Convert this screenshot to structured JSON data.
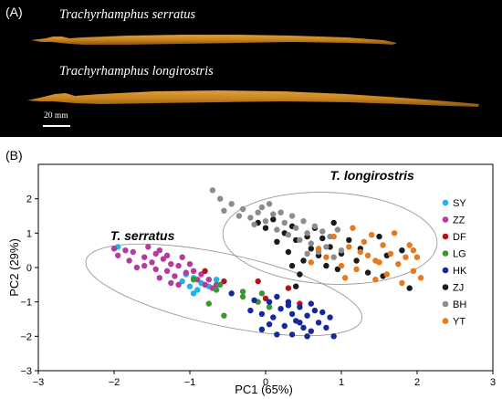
{
  "panel_a": {
    "letter": "(A)",
    "species_top": "Trachyrhamphus serratus",
    "species_bottom": "Trachyrhamphus longirostris",
    "scale_label": "20 mm",
    "background": "#000000",
    "fish_color": "#c8841e"
  },
  "panel_b": {
    "letter": "(B)"
  },
  "chart_data": {
    "type": "scatter",
    "xlabel": "PC1 (65%)",
    "ylabel": "PC2 (29%)",
    "xlim": [
      -3,
      3
    ],
    "ylim": [
      -3,
      3
    ],
    "xticks": [
      "−3",
      "−2",
      "−1",
      "0",
      "1",
      "2",
      "3"
    ],
    "yticks": [
      "2",
      "1",
      "0",
      "−1",
      "−2",
      "−3"
    ],
    "group_labels": {
      "serratus": "T. serratus",
      "longirostris": "T. longirostris"
    },
    "legend_position": "right",
    "series": [
      {
        "name": "SY",
        "color": "#1eb4e6",
        "points": [
          [
            -1.95,
            0.6
          ],
          [
            -1.1,
            -0.4
          ],
          [
            -1.0,
            -0.55
          ],
          [
            -0.95,
            -0.3
          ],
          [
            -0.9,
            -0.65
          ],
          [
            -0.85,
            -0.45
          ],
          [
            -1.05,
            -0.2
          ],
          [
            -0.75,
            -0.55
          ],
          [
            -0.95,
            -0.75
          ],
          [
            -0.65,
            -0.35
          ]
        ]
      },
      {
        "name": "ZZ",
        "color": "#b43ca0",
        "points": [
          [
            -2.0,
            0.55
          ],
          [
            -1.95,
            0.35
          ],
          [
            -1.85,
            0.5
          ],
          [
            -1.8,
            0.2
          ],
          [
            -1.75,
            0.45
          ],
          [
            -1.7,
            0.0
          ],
          [
            -1.6,
            0.3
          ],
          [
            -1.6,
            0.05
          ],
          [
            -1.55,
            0.6
          ],
          [
            -1.5,
            0.15
          ],
          [
            -1.45,
            0.4
          ],
          [
            -1.45,
            -0.05
          ],
          [
            -1.4,
            0.5
          ],
          [
            -1.35,
            0.25
          ],
          [
            -1.3,
            -0.1
          ],
          [
            -1.3,
            0.35
          ],
          [
            -1.25,
            0.1
          ],
          [
            -1.2,
            -0.25
          ],
          [
            -1.15,
            0.05
          ],
          [
            -1.1,
            0.3
          ],
          [
            -1.05,
            -0.15
          ],
          [
            -1.0,
            0.1
          ],
          [
            -0.95,
            -0.1
          ],
          [
            -0.9,
            -0.35
          ],
          [
            -0.85,
            -0.2
          ],
          [
            -0.8,
            -0.5
          ],
          [
            -0.75,
            -0.35
          ],
          [
            -0.7,
            -0.6
          ],
          [
            -0.65,
            -0.5
          ],
          [
            -1.25,
            -0.45
          ],
          [
            -1.15,
            -0.5
          ],
          [
            -1.4,
            -0.3
          ]
        ]
      },
      {
        "name": "DF",
        "color": "#b41414",
        "points": [
          [
            -0.8,
            -0.1
          ],
          [
            -0.55,
            -0.4
          ],
          [
            -0.1,
            -0.4
          ],
          [
            0.0,
            -0.9
          ],
          [
            0.3,
            -0.6
          ],
          [
            0.45,
            -1.05
          ]
        ]
      },
      {
        "name": "LG",
        "color": "#3c9632",
        "points": [
          [
            -0.95,
            -0.35
          ],
          [
            -0.65,
            -0.65
          ],
          [
            -0.6,
            -0.5
          ],
          [
            -0.3,
            -0.85
          ],
          [
            -0.75,
            -1.05
          ],
          [
            -0.55,
            -1.4
          ],
          [
            -0.3,
            -0.7
          ],
          [
            -0.1,
            -1.0
          ],
          [
            0.05,
            -1.15
          ],
          [
            -0.05,
            -0.75
          ]
        ]
      },
      {
        "name": "HK",
        "color": "#1428a0",
        "points": [
          [
            -0.45,
            -0.75
          ],
          [
            -0.2,
            -1.25
          ],
          [
            -0.15,
            -0.95
          ],
          [
            -0.05,
            -1.35
          ],
          [
            0.05,
            -1.0
          ],
          [
            0.1,
            -1.45
          ],
          [
            0.15,
            -0.85
          ],
          [
            0.2,
            -1.2
          ],
          [
            0.25,
            -1.7
          ],
          [
            0.3,
            -1.0
          ],
          [
            0.35,
            -1.35
          ],
          [
            0.35,
            -1.95
          ],
          [
            0.4,
            -1.55
          ],
          [
            0.45,
            -1.15
          ],
          [
            0.5,
            -1.75
          ],
          [
            0.55,
            -1.4
          ],
          [
            0.6,
            -1.85
          ],
          [
            0.65,
            -1.25
          ],
          [
            0.7,
            -1.6
          ],
          [
            0.75,
            -1.3
          ],
          [
            0.8,
            -1.75
          ],
          [
            0.85,
            -1.45
          ],
          [
            0.9,
            -2.0
          ],
          [
            0.55,
            -2.0
          ],
          [
            0.15,
            -1.95
          ],
          [
            0.05,
            -1.65
          ],
          [
            -0.05,
            -1.8
          ],
          [
            0.3,
            -1.1
          ],
          [
            0.6,
            -1.05
          ],
          [
            0.45,
            -1.6
          ]
        ]
      },
      {
        "name": "ZJ",
        "color": "#1a1a1a",
        "points": [
          [
            -0.1,
            1.3
          ],
          [
            0.0,
            1.15
          ],
          [
            0.1,
            1.4
          ],
          [
            0.15,
            0.75
          ],
          [
            0.25,
            1.0
          ],
          [
            0.3,
            0.45
          ],
          [
            0.35,
            1.2
          ],
          [
            0.4,
            0.8
          ],
          [
            0.5,
            0.2
          ],
          [
            0.55,
            0.9
          ],
          [
            0.6,
            0.55
          ],
          [
            0.65,
            1.15
          ],
          [
            0.7,
            0.35
          ],
          [
            0.75,
            0.85
          ],
          [
            0.8,
            0.05
          ],
          [
            0.85,
            0.6
          ],
          [
            0.9,
            1.3
          ],
          [
            0.95,
            -0.05
          ],
          [
            1.0,
            0.4
          ],
          [
            1.1,
            0.8
          ],
          [
            1.2,
            0.2
          ],
          [
            1.25,
            0.55
          ],
          [
            1.35,
            -0.15
          ],
          [
            1.5,
            0.9
          ],
          [
            1.6,
            0.35
          ],
          [
            1.55,
            -0.25
          ],
          [
            1.8,
            0.5
          ],
          [
            1.9,
            -0.6
          ],
          [
            0.4,
            -0.55
          ],
          [
            0.35,
            0.05
          ],
          [
            0.45,
            -0.2
          ]
        ]
      },
      {
        "name": "BH",
        "color": "#8c8c8c",
        "points": [
          [
            -0.7,
            2.25
          ],
          [
            -0.6,
            2.0
          ],
          [
            -0.55,
            1.65
          ],
          [
            -0.45,
            1.85
          ],
          [
            -0.35,
            1.5
          ],
          [
            -0.3,
            1.7
          ],
          [
            -0.2,
            1.45
          ],
          [
            -0.15,
            1.25
          ],
          [
            -0.1,
            1.6
          ],
          [
            -0.05,
            1.75
          ],
          [
            0.0,
            1.35
          ],
          [
            0.05,
            1.85
          ],
          [
            0.1,
            1.55
          ],
          [
            0.15,
            1.1
          ],
          [
            0.2,
            1.6
          ],
          [
            0.25,
            1.3
          ],
          [
            0.3,
            0.95
          ],
          [
            0.35,
            1.5
          ],
          [
            0.4,
            1.15
          ],
          [
            0.45,
            0.8
          ],
          [
            0.5,
            1.35
          ],
          [
            0.55,
            1.0
          ],
          [
            0.6,
            0.7
          ],
          [
            0.65,
            1.2
          ],
          [
            0.7,
            0.45
          ],
          [
            0.75,
            1.05
          ],
          [
            0.8,
            0.6
          ],
          [
            0.85,
            0.9
          ],
          [
            0.9,
            0.3
          ],
          [
            0.95,
            1.1
          ],
          [
            1.0,
            0.5
          ],
          [
            0.55,
            0.4
          ]
        ]
      },
      {
        "name": "YT",
        "color": "#e6781e",
        "points": [
          [
            0.6,
            0.15
          ],
          [
            0.7,
            0.55
          ],
          [
            0.8,
            0.3
          ],
          [
            0.9,
            0.9
          ],
          [
            1.0,
            0.05
          ],
          [
            1.05,
            -0.3
          ],
          [
            1.1,
            0.6
          ],
          [
            1.15,
            1.15
          ],
          [
            1.2,
            -0.05
          ],
          [
            1.3,
            0.75
          ],
          [
            1.35,
            0.35
          ],
          [
            1.4,
            0.95
          ],
          [
            1.45,
            -0.35
          ],
          [
            1.5,
            0.15
          ],
          [
            1.55,
            0.65
          ],
          [
            1.6,
            -0.2
          ],
          [
            1.65,
            0.4
          ],
          [
            1.7,
            1.0
          ],
          [
            1.75,
            0.1
          ],
          [
            1.8,
            -0.45
          ],
          [
            1.85,
            0.3
          ],
          [
            1.9,
            0.65
          ],
          [
            1.95,
            -0.1
          ],
          [
            2.0,
            0.3
          ],
          [
            2.05,
            -0.3
          ],
          [
            1.95,
            0.5
          ],
          [
            1.45,
            0.2
          ],
          [
            1.25,
            0.45
          ]
        ]
      }
    ]
  }
}
